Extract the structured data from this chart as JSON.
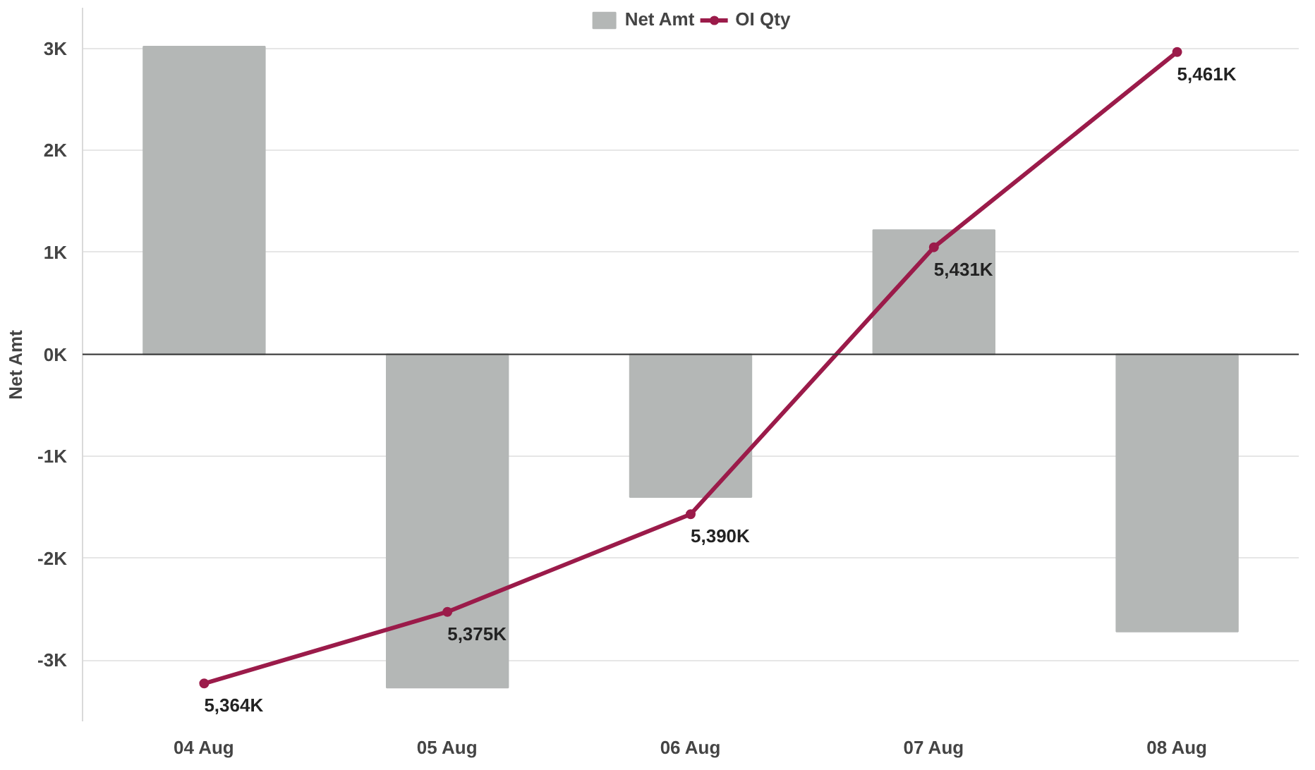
{
  "chart_data": {
    "type": "bar",
    "ylabel": "Net Amt",
    "categories": [
      "04 Aug",
      "05 Aug",
      "06 Aug",
      "07 Aug",
      "08 Aug"
    ],
    "series": [
      {
        "name": "Net Amt",
        "color": "#b4b7b6",
        "values": [
          3.02,
          -3.27,
          -1.4,
          1.22,
          -2.72
        ]
      },
      {
        "name": "OI Qty",
        "type": "line",
        "axis": "y2",
        "color": "#9b1b4a",
        "marker": "circle",
        "values": [
          5364,
          5375,
          5390,
          5431,
          5461
        ],
        "value_labels": [
          "5,364K",
          "5,375K",
          "5,390K",
          "5,431K",
          "5,461K"
        ]
      }
    ],
    "ylim": [
      -3.6,
      3.4
    ],
    "yticks": [
      {
        "value": -3,
        "label": "-3K"
      },
      {
        "value": -2,
        "label": "-2K"
      },
      {
        "value": -1,
        "label": "-1K"
      },
      {
        "value": 0,
        "label": "0K"
      },
      {
        "value": 1,
        "label": "1K"
      },
      {
        "value": 2,
        "label": "2K"
      },
      {
        "value": 3,
        "label": "3K"
      }
    ],
    "ref_lines": [
      {
        "axis": "y",
        "value": 0,
        "color": "#333333"
      }
    ],
    "grid": "y",
    "legend": "top"
  }
}
